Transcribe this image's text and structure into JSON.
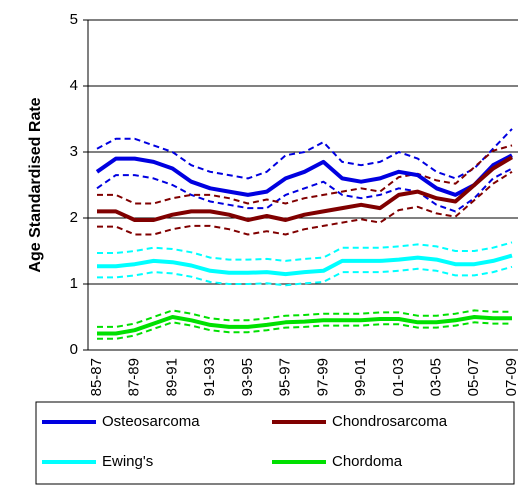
{
  "chart_data": {
    "type": "line",
    "y_label": "Age Standardised Rate",
    "categories": [
      "85-87",
      null,
      "87-89",
      null,
      "89-91",
      null,
      "91-93",
      null,
      "93-95",
      null,
      "95-97",
      null,
      "97-99",
      null,
      "99-01",
      null,
      "01-03",
      null,
      "03-05",
      null,
      "05-07",
      null,
      "07-09"
    ],
    "ylim": [
      0,
      5
    ],
    "yticks": [
      0,
      1,
      2,
      3,
      4,
      5
    ],
    "grid": true,
    "legend": "bottom",
    "series": [
      {
        "name": "Osteosarcoma",
        "color": "#0000e0",
        "values": [
          2.7,
          2.9,
          2.9,
          2.85,
          2.75,
          2.55,
          2.45,
          2.4,
          2.35,
          2.4,
          2.6,
          2.7,
          2.85,
          2.6,
          2.55,
          2.6,
          2.7,
          2.65,
          2.45,
          2.35,
          2.5,
          2.8,
          2.95
        ],
        "upper": [
          3.05,
          3.2,
          3.2,
          3.1,
          3.0,
          2.8,
          2.7,
          2.65,
          2.6,
          2.7,
          2.95,
          3.0,
          3.15,
          2.85,
          2.8,
          2.85,
          3.0,
          2.9,
          2.7,
          2.6,
          2.75,
          3.05,
          3.35
        ],
        "lower": [
          2.45,
          2.65,
          2.65,
          2.6,
          2.5,
          2.35,
          2.25,
          2.2,
          2.15,
          2.15,
          2.35,
          2.45,
          2.55,
          2.35,
          2.3,
          2.35,
          2.45,
          2.4,
          2.2,
          2.1,
          2.3,
          2.6,
          2.75
        ]
      },
      {
        "name": "Chondrosarcoma",
        "color": "#800000",
        "values": [
          2.1,
          2.1,
          1.97,
          1.97,
          2.05,
          2.1,
          2.1,
          2.05,
          1.97,
          2.03,
          1.97,
          2.05,
          2.1,
          2.15,
          2.2,
          2.15,
          2.35,
          2.4,
          2.3,
          2.25,
          2.5,
          2.75,
          2.92
        ],
        "upper": [
          2.35,
          2.35,
          2.22,
          2.22,
          2.3,
          2.35,
          2.35,
          2.3,
          2.22,
          2.28,
          2.22,
          2.3,
          2.35,
          2.4,
          2.45,
          2.4,
          2.62,
          2.67,
          2.57,
          2.52,
          2.77,
          3.02,
          3.1
        ],
        "lower": [
          1.87,
          1.87,
          1.75,
          1.75,
          1.83,
          1.88,
          1.88,
          1.83,
          1.75,
          1.8,
          1.75,
          1.83,
          1.88,
          1.93,
          1.98,
          1.93,
          2.12,
          2.17,
          2.07,
          2.02,
          2.27,
          2.52,
          2.7
        ]
      },
      {
        "name": "Ewing's",
        "color": "#00ffff",
        "values": [
          1.27,
          1.27,
          1.3,
          1.35,
          1.33,
          1.28,
          1.2,
          1.17,
          1.17,
          1.18,
          1.15,
          1.18,
          1.2,
          1.35,
          1.35,
          1.35,
          1.37,
          1.4,
          1.37,
          1.3,
          1.3,
          1.35,
          1.43
        ],
        "upper": [
          1.47,
          1.47,
          1.5,
          1.55,
          1.53,
          1.48,
          1.4,
          1.37,
          1.37,
          1.38,
          1.35,
          1.38,
          1.4,
          1.55,
          1.55,
          1.55,
          1.57,
          1.6,
          1.57,
          1.5,
          1.5,
          1.55,
          1.63
        ],
        "lower": [
          1.1,
          1.1,
          1.13,
          1.18,
          1.16,
          1.11,
          1.03,
          1.0,
          1.0,
          1.01,
          0.98,
          1.01,
          1.03,
          1.18,
          1.18,
          1.18,
          1.2,
          1.23,
          1.2,
          1.13,
          1.13,
          1.18,
          1.26
        ]
      },
      {
        "name": "Chordoma",
        "color": "#00e000",
        "values": [
          0.25,
          0.25,
          0.3,
          0.4,
          0.5,
          0.45,
          0.38,
          0.35,
          0.35,
          0.38,
          0.42,
          0.43,
          0.45,
          0.45,
          0.45,
          0.47,
          0.47,
          0.42,
          0.42,
          0.45,
          0.5,
          0.48,
          0.48
        ],
        "upper": [
          0.35,
          0.35,
          0.4,
          0.5,
          0.6,
          0.55,
          0.48,
          0.45,
          0.45,
          0.48,
          0.52,
          0.53,
          0.55,
          0.55,
          0.55,
          0.57,
          0.57,
          0.52,
          0.52,
          0.55,
          0.6,
          0.58,
          0.58
        ],
        "lower": [
          0.17,
          0.17,
          0.22,
          0.32,
          0.42,
          0.37,
          0.3,
          0.27,
          0.27,
          0.3,
          0.34,
          0.35,
          0.37,
          0.37,
          0.37,
          0.39,
          0.39,
          0.34,
          0.34,
          0.37,
          0.42,
          0.4,
          0.4
        ]
      }
    ]
  }
}
